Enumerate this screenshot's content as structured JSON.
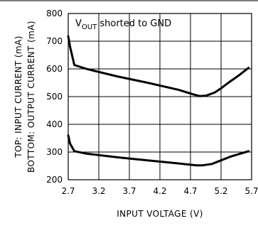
{
  "chart_data": {
    "type": "line",
    "annotation": {
      "main": "V",
      "sub": "OUT",
      "rest": " shorted to GND"
    },
    "xlabel": "INPUT VOLTAGE (V)",
    "ylabel": [
      "TOP: INPUT CURRENT (mA)",
      "BOTTOM: OUTPUT CURRENT (mA)"
    ],
    "xlim": [
      2.7,
      5.7
    ],
    "ylim": [
      200,
      800
    ],
    "xticks": [
      "2.7",
      "3.2",
      "3.7",
      "4.2",
      "4.7",
      "5.2",
      "5.7"
    ],
    "yticks": [
      "200",
      "300",
      "400",
      "500",
      "600",
      "700",
      "800"
    ],
    "grid": true,
    "series": [
      {
        "x": [
          2.7,
          2.73,
          2.8,
          3.0,
          3.5,
          4.0,
          4.5,
          4.75,
          4.85,
          4.95,
          5.1,
          5.2,
          5.35,
          5.5,
          5.65
        ],
        "y": [
          718,
          680,
          614,
          600,
          573,
          550,
          525,
          508,
          502,
          503,
          515,
          530,
          555,
          578,
          604
        ]
      },
      {
        "x": [
          2.7,
          2.73,
          2.8,
          3.0,
          3.5,
          4.0,
          4.5,
          4.8,
          4.9,
          5.05,
          5.2,
          5.35,
          5.5,
          5.65
        ],
        "y": [
          360,
          330,
          303,
          294,
          281,
          270,
          259,
          252,
          252,
          257,
          270,
          283,
          293,
          303
        ]
      }
    ]
  }
}
